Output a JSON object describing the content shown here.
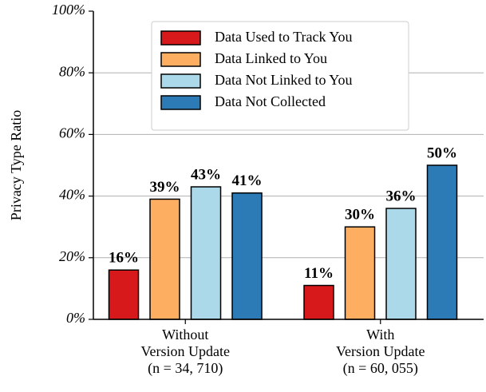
{
  "chart_data": {
    "type": "bar",
    "ylabel": "Privacy Type Ratio",
    "categories": [
      [
        "Without",
        "Version Update",
        "(n = 34, 710)"
      ],
      [
        "With",
        "Version Update",
        "(n = 60, 055)"
      ]
    ],
    "series": [
      {
        "name": "Data Used to Track You",
        "color": "#d7191c",
        "values": [
          16,
          11
        ],
        "value_labels": [
          "16%",
          "11%"
        ]
      },
      {
        "name": "Data Linked to You",
        "color": "#fdae61",
        "values": [
          39,
          30
        ],
        "value_labels": [
          "39%",
          "30%"
        ]
      },
      {
        "name": "Data Not Linked to You",
        "color": "#abd9e9",
        "values": [
          43,
          36
        ],
        "value_labels": [
          "43%",
          "36%"
        ]
      },
      {
        "name": "Data Not Collected",
        "color": "#2c7bb6",
        "values": [
          41,
          50
        ],
        "value_labels": [
          "41%",
          "50%"
        ]
      }
    ],
    "ylim": [
      0,
      100
    ],
    "yticks": [
      {
        "value": 0,
        "label": "0%"
      },
      {
        "value": 20,
        "label": "20%"
      },
      {
        "value": 40,
        "label": "40%"
      },
      {
        "value": 60,
        "label": "60%"
      },
      {
        "value": 80,
        "label": "80%"
      },
      {
        "value": 100,
        "label": "100%"
      }
    ],
    "grid": true,
    "legend": "upper center"
  }
}
